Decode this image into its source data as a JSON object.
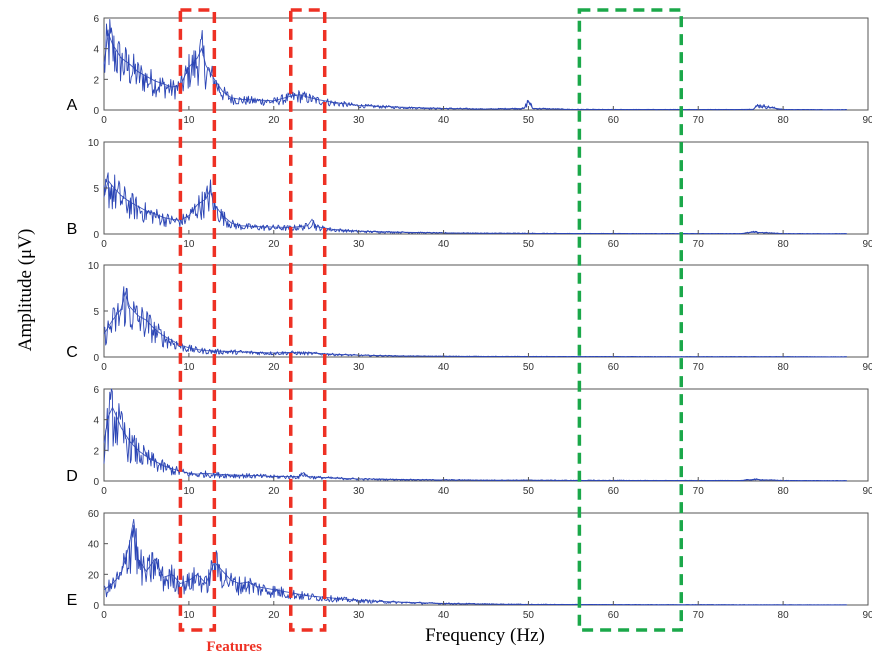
{
  "chart_data": {
    "type": "line",
    "xlabel": "Frequency (Hz)",
    "ylabel": "Amplitude (μV)",
    "xlim": [
      0,
      90
    ],
    "xticks": [
      "0",
      "10",
      "20",
      "30",
      "40",
      "50",
      "60",
      "70",
      "80",
      "90"
    ],
    "x_end_hz": 87.5,
    "line_color": "#2b45b5",
    "grid": false,
    "panels": [
      {
        "label": "A",
        "ylim": [
          0,
          6
        ],
        "yticks": [
          "0",
          "2",
          "4",
          "6"
        ],
        "x": [
          0,
          0.5,
          1,
          2,
          3,
          4,
          5,
          6,
          7,
          8,
          9,
          10,
          11,
          11.5,
          12,
          13,
          14,
          15,
          16,
          18,
          20,
          22,
          23,
          25,
          27,
          30,
          35,
          40,
          45,
          49.5,
          50,
          50.5,
          55,
          60,
          65,
          70,
          75,
          76.5,
          77,
          80,
          85,
          87.5
        ],
        "y": [
          3.0,
          5.0,
          4.3,
          3.4,
          3.0,
          2.5,
          2.2,
          1.9,
          1.7,
          1.5,
          1.6,
          2.8,
          3.4,
          4.0,
          2.9,
          2.0,
          1.2,
          0.8,
          0.7,
          0.65,
          0.6,
          0.9,
          1.0,
          0.7,
          0.5,
          0.3,
          0.18,
          0.1,
          0.06,
          0.1,
          0.6,
          0.1,
          0.04,
          0.03,
          0.03,
          0.03,
          0.03,
          0.05,
          0.3,
          0.03,
          0.02,
          0.02
        ]
      },
      {
        "label": "B",
        "ylim": [
          0,
          10
        ],
        "yticks": [
          "0",
          "5",
          "10"
        ],
        "x": [
          0,
          0.5,
          1,
          2,
          3,
          4,
          5,
          6,
          7,
          8,
          9,
          10,
          11,
          12,
          12.5,
          13,
          14,
          15,
          16,
          18,
          20,
          22,
          23,
          24,
          24.5,
          25,
          27,
          30,
          35,
          40,
          45,
          50,
          55,
          60,
          65,
          70,
          75,
          76.5,
          80,
          85,
          87.5
        ],
        "y": [
          4.0,
          5.8,
          5.2,
          4.2,
          3.5,
          3.0,
          2.5,
          2.2,
          1.8,
          1.6,
          1.5,
          2.0,
          3.2,
          3.8,
          4.8,
          3.2,
          2.0,
          1.2,
          0.9,
          0.8,
          0.75,
          0.7,
          0.8,
          0.9,
          1.6,
          0.8,
          0.5,
          0.3,
          0.2,
          0.12,
          0.08,
          0.07,
          0.05,
          0.05,
          0.04,
          0.04,
          0.04,
          0.2,
          0.04,
          0.03,
          0.03
        ]
      },
      {
        "label": "C",
        "ylim": [
          0,
          10
        ],
        "yticks": [
          "0",
          "5",
          "10"
        ],
        "x": [
          0,
          1,
          2,
          2.5,
          3,
          4,
          5,
          6,
          7,
          8,
          9,
          10,
          11,
          12,
          13,
          15,
          18,
          20,
          22,
          25,
          27,
          30,
          35,
          40,
          45,
          50,
          55,
          60,
          65,
          70,
          75,
          80,
          85,
          87.5
        ],
        "y": [
          2.5,
          4.0,
          5.2,
          7.0,
          5.5,
          4.5,
          4.0,
          3.0,
          2.3,
          1.8,
          1.3,
          1.0,
          0.8,
          0.7,
          0.65,
          0.6,
          0.5,
          0.45,
          0.5,
          0.4,
          0.3,
          0.2,
          0.12,
          0.08,
          0.06,
          0.05,
          0.04,
          0.04,
          0.03,
          0.03,
          0.03,
          0.03,
          0.02,
          0.02
        ]
      },
      {
        "label": "D",
        "ylim": [
          0,
          6
        ],
        "yticks": [
          "0",
          "2",
          "4",
          "6"
        ],
        "x": [
          0,
          0.5,
          1,
          1.5,
          2,
          3,
          4,
          5,
          6,
          7,
          8,
          9,
          10,
          11,
          12,
          13,
          15,
          18,
          20,
          22,
          23,
          23.5,
          24,
          25,
          27,
          30,
          35,
          40,
          45,
          50,
          55,
          60,
          65,
          70,
          75,
          76.5,
          80,
          85,
          87.5
        ],
        "y": [
          2.5,
          4.2,
          4.8,
          4.2,
          3.5,
          2.6,
          2.0,
          1.6,
          1.3,
          1.0,
          0.8,
          0.65,
          0.5,
          0.45,
          0.5,
          0.45,
          0.4,
          0.35,
          0.3,
          0.3,
          0.3,
          0.55,
          0.3,
          0.25,
          0.2,
          0.14,
          0.1,
          0.07,
          0.05,
          0.05,
          0.04,
          0.04,
          0.03,
          0.03,
          0.03,
          0.1,
          0.03,
          0.02,
          0.02
        ]
      },
      {
        "label": "E",
        "ylim": [
          0,
          60
        ],
        "yticks": [
          "0",
          "20",
          "40",
          "60"
        ],
        "x": [
          0,
          1,
          2,
          3,
          3.5,
          4,
          5,
          6,
          7,
          8,
          9,
          10,
          11,
          12,
          13,
          14,
          15,
          16,
          17,
          18,
          20,
          22,
          24,
          26,
          28,
          30,
          32,
          35,
          40,
          45,
          50,
          55,
          60,
          65,
          70,
          75,
          80,
          85,
          87.5
        ],
        "y": [
          10,
          14,
          20,
          40,
          56,
          30,
          22,
          30,
          18,
          20,
          14,
          16,
          20,
          14,
          28,
          22,
          16,
          14,
          15,
          12,
          10,
          8,
          6,
          5,
          4,
          3,
          2.5,
          1.8,
          1.0,
          0.6,
          0.4,
          0.3,
          0.25,
          0.2,
          0.2,
          0.15,
          0.15,
          0.1,
          0.1
        ]
      }
    ],
    "annotations": [
      {
        "label": "Features",
        "x_range": [
          9,
          13
        ],
        "color": "#ee3124",
        "style": "dashed"
      },
      {
        "label": "",
        "x_range": [
          22,
          26
        ],
        "color": "#ee3124",
        "style": "dashed"
      },
      {
        "label": "",
        "x_range": [
          56,
          68
        ],
        "color": "#1ba84a",
        "style": "dashed"
      }
    ]
  }
}
